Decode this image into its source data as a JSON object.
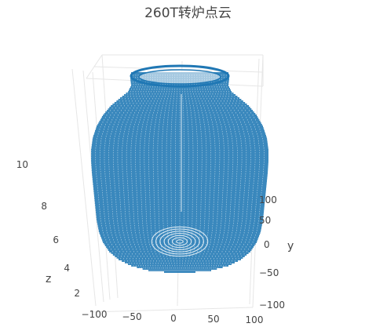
{
  "chart_data": {
    "type": "scatter",
    "title": "260T转炉点云",
    "series_color": "#1f77b4",
    "grid": true,
    "axes": {
      "x": {
        "title": "",
        "ticks": [
          "−100",
          "−50",
          "0",
          "50",
          "100"
        ],
        "range": [
          -100,
          100
        ]
      },
      "y": {
        "title": "y",
        "ticks": [
          "100",
          "50",
          "0",
          "−50",
          "−100"
        ],
        "range": [
          -100,
          100
        ]
      },
      "z": {
        "title": "z",
        "ticks": [
          "2",
          "4",
          "6",
          "8",
          "10"
        ],
        "range": [
          0,
          12
        ]
      }
    },
    "shape": {
      "description_values": {
        "bottom_z": 0,
        "barrel_top_z": 7,
        "neck_z": 10,
        "mouth_z": 11,
        "barrel_radius": 100,
        "mouth_radius": 60
      }
    }
  }
}
